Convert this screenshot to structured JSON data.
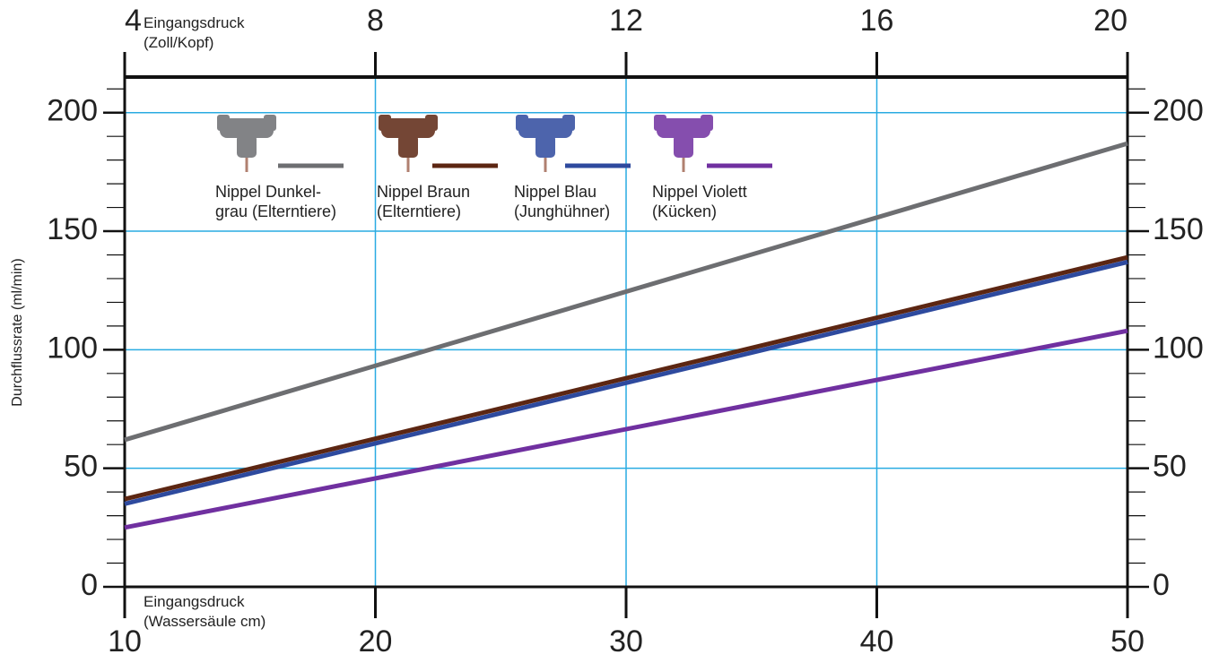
{
  "chart_data": {
    "type": "line",
    "y_label": "Durchflussrate (ml/min)",
    "x_label": "Eingangsdruck\n(Wassersäule cm)",
    "x2_label": "Eingangsdruck\n(Zoll/Kopf)",
    "x": [
      10,
      50
    ],
    "xlim": [
      10,
      50
    ],
    "xticks": [
      10,
      20,
      30,
      40,
      50
    ],
    "x2lim": [
      4,
      20
    ],
    "x2ticks": [
      4,
      8,
      12,
      16,
      20
    ],
    "ylim": [
      0,
      215
    ],
    "yticks": [
      0,
      50,
      100,
      150,
      200
    ],
    "yminorticks": [
      10,
      20,
      30,
      40,
      60,
      70,
      80,
      90,
      110,
      120,
      130,
      140,
      160,
      170,
      180,
      190,
      210
    ],
    "grid": true,
    "grid_color": "#29abe2",
    "series": [
      {
        "name": "Nippel Dunkel-\ngrau (Elterntiere)",
        "color": "#6d6e71",
        "values": [
          62,
          187
        ]
      },
      {
        "name": "Nippel Braun\n(Elterntiere)",
        "color": "#5c2612",
        "values": [
          37,
          139
        ]
      },
      {
        "name": "Nippel Blau\n(Junghühner)",
        "color": "#2e4a9e",
        "values": [
          35,
          137
        ]
      },
      {
        "name": "Nippel Violett\n(Kücken)",
        "color": "#7030a0",
        "values": [
          25,
          108
        ]
      }
    ]
  }
}
